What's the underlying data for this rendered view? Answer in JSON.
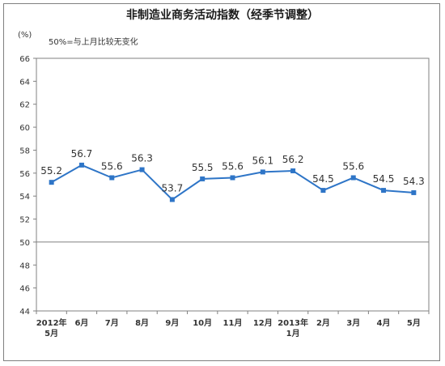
{
  "chart_data": {
    "type": "line",
    "title": "非制造业商务活动指数（经季节调整）",
    "ylabel": "(%)",
    "annotation": "50%=与上月比较无变化",
    "ylim": [
      44,
      66
    ],
    "yticks": [
      44,
      46,
      48,
      50,
      52,
      54,
      56,
      58,
      60,
      62,
      64,
      66
    ],
    "reference_line": 50,
    "categories": [
      [
        "2012年",
        "5月"
      ],
      [
        "6月"
      ],
      [
        "7月"
      ],
      [
        "8月"
      ],
      [
        "9月"
      ],
      [
        "10月"
      ],
      [
        "11月"
      ],
      [
        "12月"
      ],
      [
        "2013年",
        "1月"
      ],
      [
        "2月"
      ],
      [
        "3月"
      ],
      [
        "4月"
      ],
      [
        "5月"
      ]
    ],
    "values": [
      55.2,
      56.7,
      55.6,
      56.3,
      53.7,
      55.5,
      55.6,
      56.1,
      56.2,
      54.5,
      55.6,
      54.5,
      54.3
    ],
    "color": "#2e75c7"
  }
}
